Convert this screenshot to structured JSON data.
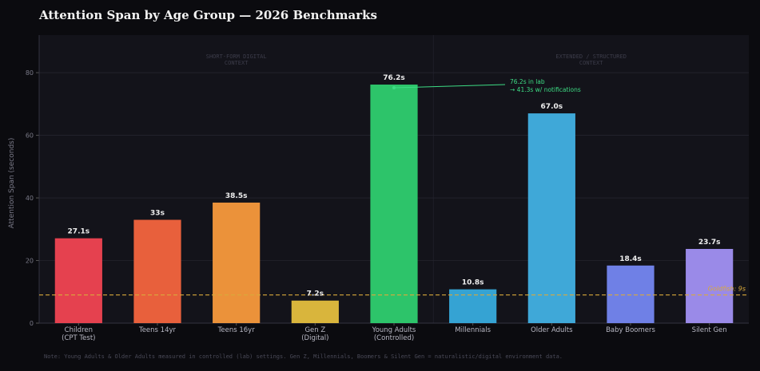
{
  "title": "Attention Span by Age Group — 2026 Benchmarks",
  "footnote": "Note: Young Adults & Older Adults measured in controlled (lab) settings. Gen Z, Millennials, Boomers & Silent Gen = naturalistic/digital environment data.",
  "colors": {
    "background": "#0b0b0f",
    "plot_background": "#13131a",
    "grid": "#24242e",
    "goldfish_line": "#d9a93a",
    "annotation": "#3ddc84"
  },
  "chart_data": {
    "type": "bar",
    "categories": [
      "Children\n(CPT Test)",
      "Teens 14yr",
      "Teens 16yr",
      "Gen Z\n(Digital)",
      "Young Adults\n(Controlled)",
      "Millennials",
      "Older Adults",
      "Baby Boomers",
      "Silent Gen"
    ],
    "values": [
      27.1,
      33,
      38.5,
      7.2,
      76.2,
      10.8,
      67.0,
      18.4,
      23.7
    ],
    "value_labels": [
      "27.1s",
      "33s",
      "38.5s",
      "7.2s",
      "76.2s",
      "10.8s",
      "67.0s",
      "18.4s",
      "23.7s"
    ],
    "bar_colors": [
      "#e5414f",
      "#e8603c",
      "#eb923a",
      "#d9b53c",
      "#2dc46a",
      "#35a3d3",
      "#3fa8d8",
      "#6f80e6",
      "#9a8ae8"
    ],
    "ylabel": "Attention Span (seconds)",
    "xlabel": "",
    "ylim": [
      0,
      92
    ],
    "yticks": [
      0,
      20,
      40,
      60,
      80
    ],
    "grid": true,
    "reference_line": {
      "value": 9,
      "label": "Goldfish: 9s",
      "style": "dashed"
    },
    "regions": [
      {
        "label": "SHORT-FORM DIGITAL\nCONTEXT",
        "from": 0,
        "to": 4
      },
      {
        "label": "EXTENDED / STRUCTURED\nCONTEXT",
        "from": 5,
        "to": 8
      }
    ],
    "annotation": {
      "text": "76.2s in lab\n→ 41.3s w/ notifications",
      "target_index": 4,
      "target_value": 76.2
    }
  }
}
